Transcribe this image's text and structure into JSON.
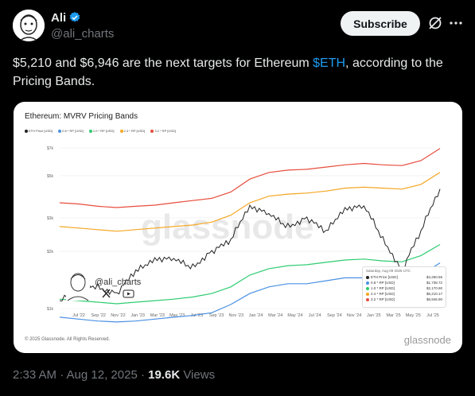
{
  "author": {
    "name": "Ali",
    "handle": "@ali_charts"
  },
  "header": {
    "subscribe_label": "Subscribe"
  },
  "tweet": {
    "text_before": "$5,210 and $6,946 are the next targets for Ethereum ",
    "cashtag": "$ETH",
    "text_after": ", according to the Pricing Bands."
  },
  "meta": {
    "time": "2:33 AM · Aug 12, 2025 · ",
    "views": "19.6K",
    "views_label": " Views"
  },
  "card": {
    "copyright": "© 2025 Glassnode. All Rights Reserved.",
    "brand": "glassnode",
    "watermark": "glassnode",
    "overlay_handle": "@ali_charts"
  },
  "chart_data": {
    "type": "line",
    "title": "Ethereum: MVRV Pricing Bands",
    "legend": [
      "ETH Price [USD]",
      "0.8 * RP [USD]",
      "1.0 * RP [USD]",
      "2.4 * RP [USD]",
      "3.2 * RP [USD]"
    ],
    "y_ticks": [
      "$7k",
      "$5k",
      "$3k",
      "$2k",
      "$1k"
    ],
    "y_scale": "log",
    "x_ticks": [
      "Jul '22",
      "Sep '22",
      "Nov '22",
      "Jan '23",
      "Mar '23",
      "May '23",
      "Jul '23",
      "Sep '23",
      "Nov '23",
      "Jan '24",
      "Mar '24",
      "May '24",
      "Jul '24",
      "Sep '24",
      "Nov '24",
      "Jan '25",
      "Mar '25",
      "May '25",
      "Jul '25"
    ],
    "colors": {
      "eth": "#222222",
      "rp08": "#4a90e2",
      "rp10": "#2ecc71",
      "rp24": "#f5a623",
      "rp32": "#e74c3c"
    },
    "tooltip": {
      "date": "Saturday, Aug 09 2025 UTC",
      "rows": [
        {
          "label": "ETH Price [USD]",
          "value": "$4,260.55",
          "color": "#222222"
        },
        {
          "label": "0.8 * RP [USD]",
          "value": "$1,738.72",
          "color": "#4a90e2"
        },
        {
          "label": "1.0 * RP [USD]",
          "value": "$2,170.90",
          "color": "#2ecc71"
        },
        {
          "label": "2.4 * RP [USD]",
          "value": "$5,210.17",
          "color": "#f5a623"
        },
        {
          "label": "3.2 * RP [USD]",
          "value": "$6,946.90",
          "color": "#e74c3c"
        }
      ]
    },
    "series": [
      {
        "name": "ETH Price [USD]",
        "values": [
          1100,
          1350,
          1300,
          1200,
          1550,
          1850,
          1800,
          1650,
          2000,
          2250,
          3500,
          3100,
          2700,
          3000,
          2500,
          3400,
          3400,
          2300,
          1550,
          2500,
          4260
        ]
      },
      {
        "name": "0.8 * RP [USD]",
        "values": [
          900,
          880,
          860,
          850,
          860,
          880,
          900,
          920,
          950,
          1050,
          1200,
          1300,
          1350,
          1350,
          1400,
          1450,
          1450,
          1400,
          1400,
          1500,
          1739
        ]
      },
      {
        "name": "1.0 * RP [USD]",
        "values": [
          1120,
          1100,
          1080,
          1060,
          1080,
          1100,
          1120,
          1150,
          1200,
          1300,
          1500,
          1620,
          1680,
          1700,
          1750,
          1800,
          1820,
          1780,
          1760,
          1900,
          2171
        ]
      },
      {
        "name": "2.4 * RP [USD]",
        "values": [
          2700,
          2650,
          2600,
          2550,
          2600,
          2650,
          2700,
          2750,
          2850,
          3100,
          3600,
          3900,
          4000,
          4050,
          4150,
          4300,
          4350,
          4300,
          4250,
          4500,
          5210
        ]
      },
      {
        "name": "3.2 * RP [USD]",
        "values": [
          3600,
          3550,
          3450,
          3400,
          3450,
          3500,
          3600,
          3700,
          3800,
          4100,
          4800,
          5200,
          5350,
          5400,
          5550,
          5700,
          5800,
          5700,
          5650,
          6000,
          6947
        ]
      }
    ]
  }
}
